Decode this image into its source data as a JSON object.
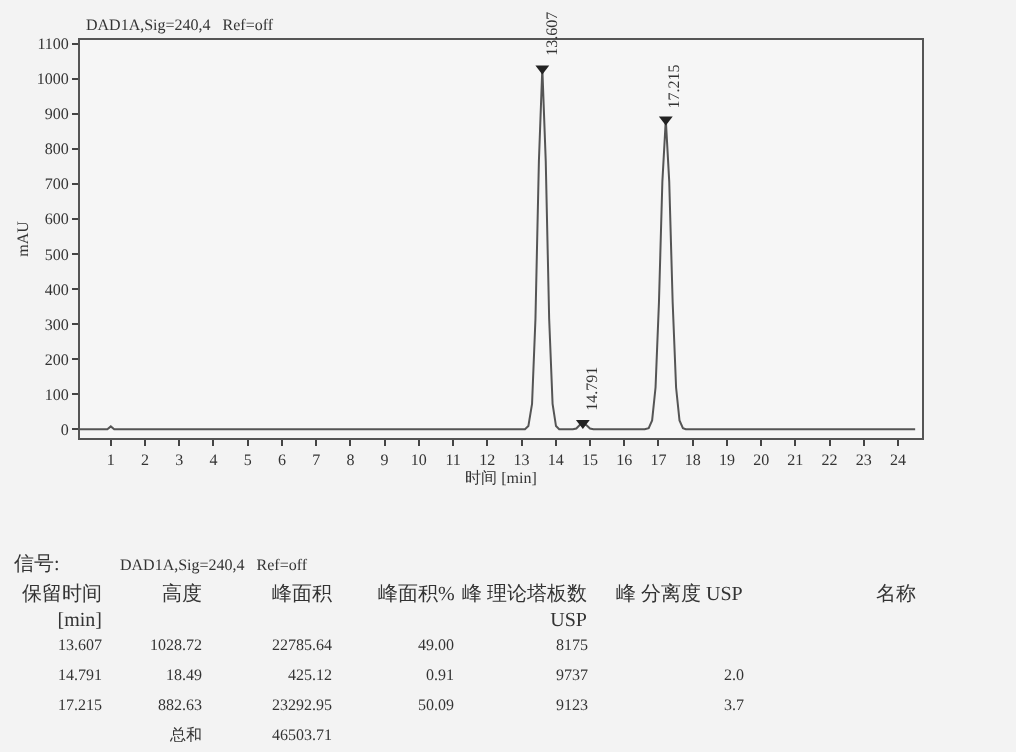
{
  "chart_data": {
    "type": "line",
    "title": "DAD1A,Sig=240,4   Ref=off",
    "xlabel": "时间 [min]",
    "ylabel": "mAU",
    "xlim": [
      0.1,
      24.7
    ],
    "xticks": [
      1,
      2,
      3,
      4,
      5,
      6,
      7,
      8,
      9,
      10,
      11,
      12,
      13,
      14,
      15,
      16,
      17,
      18,
      19,
      20,
      21,
      22,
      23,
      24
    ],
    "ylim": [
      -25,
      1110
    ],
    "yticks": [
      0,
      100,
      200,
      300,
      400,
      500,
      600,
      700,
      800,
      900,
      1000,
      1100
    ],
    "grid": false,
    "legend": false,
    "series": [
      {
        "color": "#555555",
        "marker": "none",
        "line_style": "solid",
        "x": [
          0.1,
          0.9,
          1.0,
          1.1,
          13.1,
          13.2,
          13.307,
          13.407,
          13.507,
          13.607,
          13.707,
          13.807,
          13.907,
          14.007,
          14.1,
          14.5,
          14.6,
          14.7,
          14.791,
          14.9,
          15.0,
          15.1,
          16.6,
          16.715,
          16.815,
          16.915,
          17.015,
          17.115,
          17.215,
          17.315,
          17.415,
          17.515,
          17.615,
          17.715,
          17.8,
          24.5
        ],
        "values": [
          0,
          0,
          8,
          0,
          0,
          9,
          72,
          315,
          765,
          1029,
          765,
          315,
          72,
          9,
          0,
          0,
          2,
          12,
          18,
          11,
          2,
          0,
          0,
          3,
          25,
          119,
          362,
          707,
          883,
          707,
          362,
          119,
          25,
          3,
          0,
          0
        ]
      },
      {
        "type": "scatter",
        "color": "#222222",
        "marker": "triangle",
        "x": [
          13.607,
          14.791,
          17.215
        ],
        "values": [
          1029,
          18,
          883
        ]
      }
    ],
    "annotations": [
      {
        "text": "13.607",
        "x": 13.607,
        "y": 1029
      },
      {
        "text": "14.791",
        "x": 14.791,
        "y": 18
      },
      {
        "text": "17.215",
        "x": 17.215,
        "y": 883
      },
      "信号:",
      "DAD1A,Sig=240,4   Ref=off",
      "保留时间\n[min]\t高度\t峰面积\t峰面积%\t峰 理论塔板数\nUSP\t峰 分离度 USP\t名称",
      "13.607\t1028.72\t22785.64\t49.00\t8175",
      "14.791\t18.49\t425.12\t0.91\t9737\t2.0",
      "17.215\t882.63\t23292.95\t50.09\t9123\t3.7",
      "\t总和\t46503.71"
    ]
  }
}
